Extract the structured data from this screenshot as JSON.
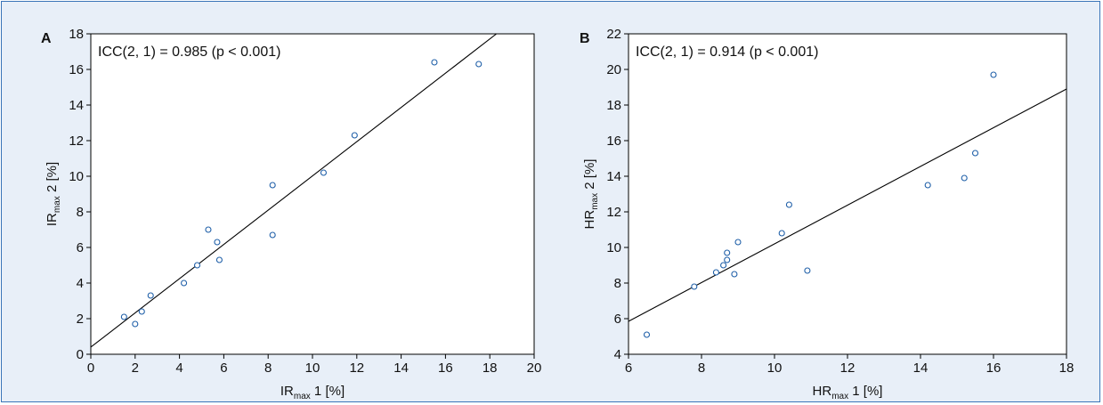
{
  "colors": {
    "frame_border": "#3a74b8",
    "frame_bg": "#e8eff8",
    "plot_bg": "#ffffff",
    "marker": "#1f5fa8",
    "line": "#000000"
  },
  "chart_data": [
    {
      "type": "scatter",
      "panel_label": "A",
      "annotation": "ICC(2, 1) = 0.985 (p < 0.001)",
      "xlabel": {
        "main": "IR",
        "sub": "max",
        "tail": " 1 [%]"
      },
      "ylabel": {
        "main": "IR",
        "sub": "max",
        "tail": " 2 [%]"
      },
      "xlim": [
        0,
        20
      ],
      "ylim": [
        0,
        18
      ],
      "xticks": [
        0,
        2,
        4,
        6,
        8,
        10,
        12,
        14,
        16,
        18,
        20
      ],
      "yticks": [
        0,
        2,
        4,
        6,
        8,
        10,
        12,
        14,
        16,
        18
      ],
      "points": [
        {
          "x": 1.5,
          "y": 2.1
        },
        {
          "x": 2.0,
          "y": 1.7
        },
        {
          "x": 2.3,
          "y": 2.4
        },
        {
          "x": 2.7,
          "y": 3.3
        },
        {
          "x": 4.2,
          "y": 4.0
        },
        {
          "x": 4.8,
          "y": 5.0
        },
        {
          "x": 5.3,
          "y": 7.0
        },
        {
          "x": 5.7,
          "y": 6.3
        },
        {
          "x": 5.8,
          "y": 5.3
        },
        {
          "x": 8.2,
          "y": 9.5
        },
        {
          "x": 8.2,
          "y": 6.7
        },
        {
          "x": 10.5,
          "y": 10.2
        },
        {
          "x": 11.9,
          "y": 12.3
        },
        {
          "x": 15.5,
          "y": 16.4
        },
        {
          "x": 17.5,
          "y": 16.3
        }
      ],
      "fit_line": {
        "x1": 0,
        "y1": 0.4,
        "x2": 18.3,
        "y2": 18
      }
    },
    {
      "type": "scatter",
      "panel_label": "B",
      "annotation": "ICC(2, 1) = 0.914 (p < 0.001)",
      "xlabel": {
        "main": "HR",
        "sub": "max",
        "tail": " 1 [%]"
      },
      "ylabel": {
        "main": "HR",
        "sub": "max",
        "tail": " 2 [%]"
      },
      "xlim": [
        6,
        18
      ],
      "ylim": [
        4,
        22
      ],
      "xticks": [
        6,
        8,
        10,
        12,
        14,
        16,
        18
      ],
      "yticks": [
        4,
        6,
        8,
        10,
        12,
        14,
        16,
        18,
        20,
        22
      ],
      "points": [
        {
          "x": 6.5,
          "y": 5.1
        },
        {
          "x": 7.8,
          "y": 7.8
        },
        {
          "x": 8.4,
          "y": 8.6
        },
        {
          "x": 8.6,
          "y": 9.0
        },
        {
          "x": 8.7,
          "y": 9.3
        },
        {
          "x": 8.7,
          "y": 9.7
        },
        {
          "x": 8.9,
          "y": 8.5
        },
        {
          "x": 9.0,
          "y": 10.3
        },
        {
          "x": 10.2,
          "y": 10.8
        },
        {
          "x": 10.4,
          "y": 12.4
        },
        {
          "x": 10.9,
          "y": 8.7
        },
        {
          "x": 14.2,
          "y": 13.5
        },
        {
          "x": 15.2,
          "y": 13.9
        },
        {
          "x": 15.5,
          "y": 15.3
        },
        {
          "x": 16.0,
          "y": 19.7
        }
      ],
      "fit_line": {
        "x1": 6,
        "y1": 5.85,
        "x2": 18,
        "y2": 18.9
      }
    }
  ]
}
